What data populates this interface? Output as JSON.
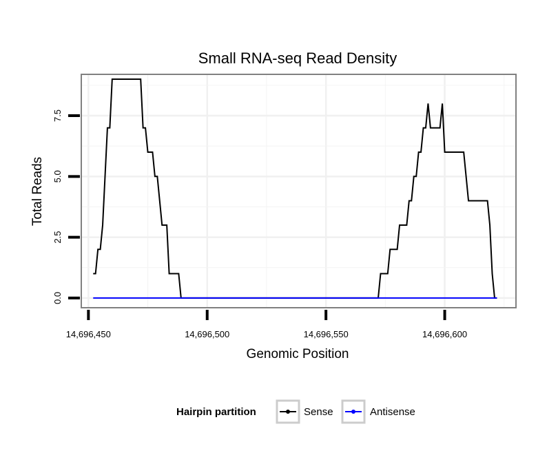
{
  "chart_data": {
    "type": "line",
    "title": "Small RNA-seq Read Density",
    "xlabel": "Genomic Position",
    "ylabel": "Total Reads",
    "xlim": [
      14696447,
      14696630
    ],
    "ylim": [
      -0.4,
      9.2
    ],
    "x_ticks": [
      14696450,
      14696500,
      14696550,
      14696600
    ],
    "x_tick_labels": [
      "14,696,450",
      "14,696,500",
      "14,696,550",
      "14,696,600"
    ],
    "y_ticks": [
      0,
      2.5,
      5,
      7.5
    ],
    "y_tick_labels": [
      "0.0",
      "2.5",
      "5.0",
      "7.5"
    ],
    "grid": true,
    "legend": {
      "title": "Hairpin partition",
      "position": "bottom",
      "entries": [
        {
          "name": "Sense",
          "color": "#000000"
        },
        {
          "name": "Antisense",
          "color": "#0000ff"
        }
      ]
    },
    "series": [
      {
        "name": "Sense",
        "color": "#000000",
        "points": [
          [
            14696452,
            1
          ],
          [
            14696453,
            1
          ],
          [
            14696454,
            2
          ],
          [
            14696455,
            2
          ],
          [
            14696456,
            3
          ],
          [
            14696457,
            5
          ],
          [
            14696458,
            7
          ],
          [
            14696459,
            7
          ],
          [
            14696460,
            9
          ],
          [
            14696461,
            9
          ],
          [
            14696462,
            9
          ],
          [
            14696463,
            9
          ],
          [
            14696464,
            9
          ],
          [
            14696465,
            9
          ],
          [
            14696466,
            9
          ],
          [
            14696467,
            9
          ],
          [
            14696468,
            9
          ],
          [
            14696469,
            9
          ],
          [
            14696470,
            9
          ],
          [
            14696471,
            9
          ],
          [
            14696472,
            9
          ],
          [
            14696473,
            7
          ],
          [
            14696474,
            7
          ],
          [
            14696475,
            6
          ],
          [
            14696476,
            6
          ],
          [
            14696477,
            6
          ],
          [
            14696478,
            5
          ],
          [
            14696479,
            5
          ],
          [
            14696480,
            4
          ],
          [
            14696481,
            3
          ],
          [
            14696482,
            3
          ],
          [
            14696483,
            3
          ],
          [
            14696484,
            1
          ],
          [
            14696485,
            1
          ],
          [
            14696486,
            1
          ],
          [
            14696487,
            1
          ],
          [
            14696488,
            1
          ],
          [
            14696489,
            0
          ],
          [
            14696490,
            0
          ],
          [
            14696572,
            0
          ],
          [
            14696573,
            1
          ],
          [
            14696574,
            1
          ],
          [
            14696575,
            1
          ],
          [
            14696576,
            1
          ],
          [
            14696577,
            2
          ],
          [
            14696578,
            2
          ],
          [
            14696579,
            2
          ],
          [
            14696580,
            2
          ],
          [
            14696581,
            3
          ],
          [
            14696582,
            3
          ],
          [
            14696583,
            3
          ],
          [
            14696584,
            3
          ],
          [
            14696585,
            4
          ],
          [
            14696586,
            4
          ],
          [
            14696587,
            5
          ],
          [
            14696588,
            5
          ],
          [
            14696589,
            6
          ],
          [
            14696590,
            6
          ],
          [
            14696591,
            7
          ],
          [
            14696592,
            7
          ],
          [
            14696593,
            8
          ],
          [
            14696594,
            7
          ],
          [
            14696595,
            7
          ],
          [
            14696596,
            7
          ],
          [
            14696597,
            7
          ],
          [
            14696598,
            7
          ],
          [
            14696599,
            8
          ],
          [
            14696600,
            6
          ],
          [
            14696601,
            6
          ],
          [
            14696602,
            6
          ],
          [
            14696603,
            6
          ],
          [
            14696604,
            6
          ],
          [
            14696605,
            6
          ],
          [
            14696606,
            6
          ],
          [
            14696607,
            6
          ],
          [
            14696608,
            6
          ],
          [
            14696609,
            5
          ],
          [
            14696610,
            4
          ],
          [
            14696611,
            4
          ],
          [
            14696612,
            4
          ],
          [
            14696613,
            4
          ],
          [
            14696614,
            4
          ],
          [
            14696615,
            4
          ],
          [
            14696616,
            4
          ],
          [
            14696617,
            4
          ],
          [
            14696618,
            4
          ],
          [
            14696619,
            3
          ],
          [
            14696620,
            1
          ],
          [
            14696621,
            0
          ],
          [
            14696622,
            0
          ]
        ]
      },
      {
        "name": "Antisense",
        "color": "#0000ff",
        "points": [
          [
            14696452,
            0
          ],
          [
            14696622,
            0
          ]
        ]
      }
    ]
  }
}
